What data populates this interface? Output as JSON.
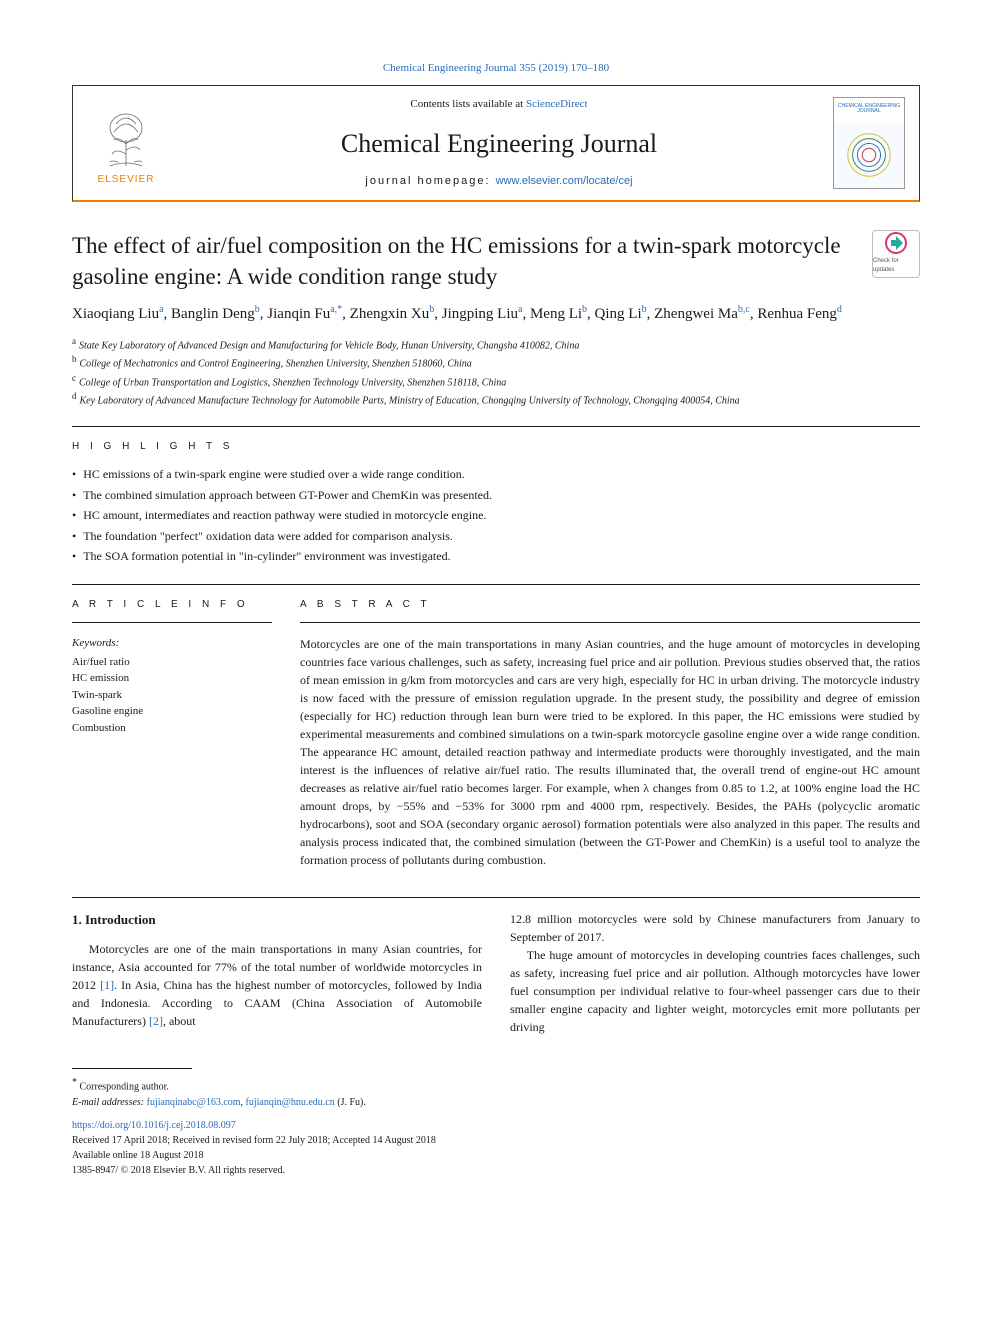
{
  "header": {
    "top_citation": "Chemical Engineering Journal 355 (2019) 170–180",
    "contents_prefix": "Contents lists available at ",
    "contents_link": "ScienceDirect",
    "journal_name": "Chemical Engineering Journal",
    "homepage_label": "journal homepage: ",
    "homepage_url": "www.elsevier.com/locate/cej",
    "publisher_word": "ELSEVIER",
    "cover_text": "CHEMICAL ENGINEERING JOURNAL",
    "colors": {
      "orange": "#f57c00",
      "link": "#2a6cb8",
      "text": "#1a1a1a"
    }
  },
  "article": {
    "title": "The effect of air/fuel composition on the HC emissions for a twin-spark motorcycle gasoline engine: A wide condition range study",
    "updates_badge": "Check for updates",
    "authors_html": "Xiaoqiang Liu<sup>a</sup>, Banglin Deng<sup>b</sup>, Jianqin Fu<sup>a,*</sup>, Zhengxin Xu<sup>b</sup>, Jingping Liu<sup>a</sup>, Meng Li<sup>b</sup>, Qing Li<sup>b</sup>, Zhengwei Ma<sup>b,c</sup>, Renhua Feng<sup>d</sup>",
    "affiliations": [
      {
        "key": "a",
        "text": "State Key Laboratory of Advanced Design and Manufacturing for Vehicle Body, Hunan University, Changsha 410082, China"
      },
      {
        "key": "b",
        "text": "College of Mechatronics and Control Engineering, Shenzhen University, Shenzhen 518060, China"
      },
      {
        "key": "c",
        "text": "College of Urban Transportation and Logistics, Shenzhen Technology University, Shenzhen 518118, China"
      },
      {
        "key": "d",
        "text": "Key Laboratory of Advanced Manufacture Technology for Automobile Parts, Ministry of Education, Chongqing University of Technology, Chongqing 400054, China"
      }
    ]
  },
  "highlights": {
    "label": "H I G H L I G H T S",
    "items": [
      "HC emissions of a twin-spark engine were studied over a wide range condition.",
      "The combined simulation approach between GT-Power and ChemKin was presented.",
      "HC amount, intermediates and reaction pathway were studied in motorcycle engine.",
      "The foundation \"perfect\" oxidation data were added for comparison analysis.",
      "The SOA formation potential in \"in-cylinder\" environment was investigated."
    ]
  },
  "article_info": {
    "label": "A R T I C L E  I N F O",
    "keywords_label": "Keywords:",
    "keywords": [
      "Air/fuel ratio",
      "HC emission",
      "Twin-spark",
      "Gasoline engine",
      "Combustion"
    ]
  },
  "abstract": {
    "label": "A B S T R A C T",
    "text": "Motorcycles are one of the main transportations in many Asian countries, and the huge amount of motorcycles in developing countries face various challenges, such as safety, increasing fuel price and air pollution. Previous studies observed that, the ratios of mean emission in g/km from motorcycles and cars are very high, especially for HC in urban driving. The motorcycle industry is now faced with the pressure of emission regulation upgrade. In the present study, the possibility and degree of emission (especially for HC) reduction through lean burn were tried to be explored. In this paper, the HC emissions were studied by experimental measurements and combined simulations on a twin-spark motorcycle gasoline engine over a wide range condition. The appearance HC amount, detailed reaction pathway and intermediate products were thoroughly investigated, and the main interest is the influences of relative air/fuel ratio. The results illuminated that, the overall trend of engine-out HC amount decreases as relative air/fuel ratio becomes larger. For example, when λ changes from 0.85 to 1.2, at 100% engine load the HC amount drops, by −55% and −53% for 3000 rpm and 4000 rpm, respectively. Besides, the PAHs (polycyclic aromatic hydrocarbons), soot and SOA (secondary organic aerosol) formation potentials were also analyzed in this paper. The results and analysis process indicated that, the combined simulation (between the GT-Power and ChemKin) is a useful tool to analyze the formation process of pollutants during combustion."
  },
  "body": {
    "section_number": "1.",
    "section_title": "Introduction",
    "left_paragraph": "Motorcycles are one of the main transportations in many Asian countries, for instance, Asia accounted for 77% of the total number of worldwide motorcycles in 2012 [1]. In Asia, China has the highest number of motorcycles, followed by India and Indonesia. According to CAAM (China Association of Automobile Manufacturers) [2], about",
    "right_paragraph_1": "12.8 million motorcycles were sold by Chinese manufacturers from January to September of 2017.",
    "right_paragraph_2": "The huge amount of motorcycles in developing countries faces challenges, such as safety, increasing fuel price and air pollution. Although motorcycles have lower fuel consumption per individual relative to four-wheel passenger cars due to their smaller engine capacity and lighter weight, motorcycles emit more pollutants per driving",
    "ref1": "[1]",
    "ref2": "[2]"
  },
  "footer": {
    "corresponding_label": "Corresponding author.",
    "email_label": "E-mail addresses: ",
    "emails": [
      "fujianqinabc@163.com",
      "fujianqin@hnu.edu.cn"
    ],
    "email_person": " (J. Fu).",
    "doi": "https://doi.org/10.1016/j.cej.2018.08.097",
    "received": "Received 17 April 2018; Received in revised form 22 July 2018; Accepted 14 August 2018",
    "available": "Available online 18 August 2018",
    "copyright": "1385-8947/ © 2018 Elsevier B.V. All rights reserved."
  }
}
